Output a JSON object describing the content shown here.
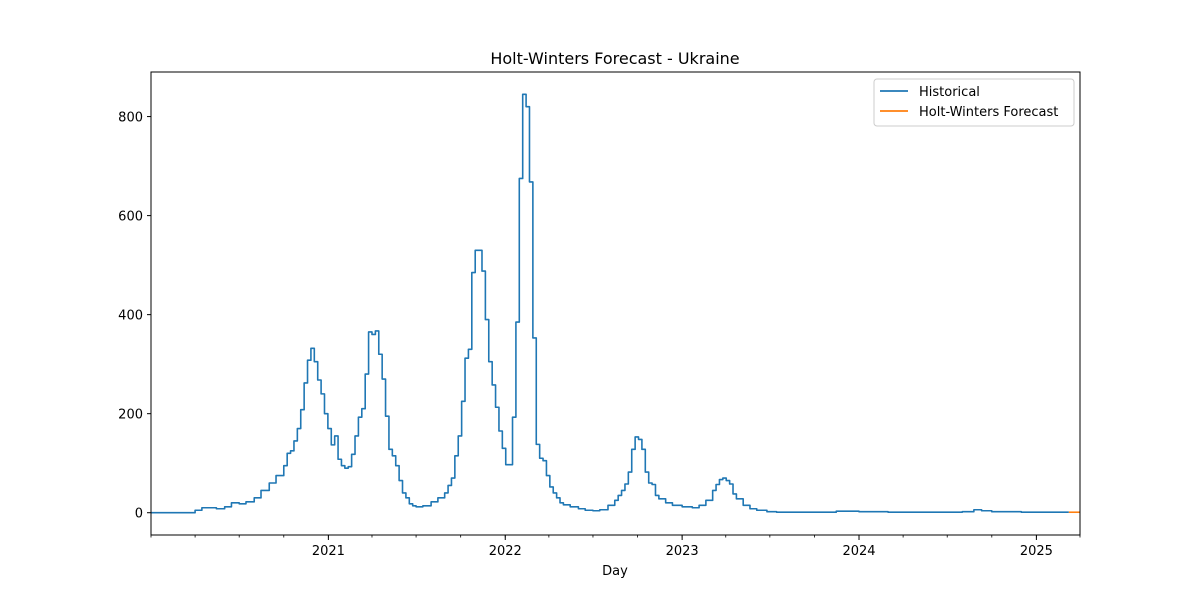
{
  "chart_data": {
    "type": "line",
    "title": "Holt-Winters Forecast - Ukraine",
    "xlabel": "Day",
    "ylabel": "",
    "xlim": [
      "2020-01-01",
      "2025-04-01"
    ],
    "ylim": [
      -45,
      890
    ],
    "x_ticks": [
      {
        "date": "2021-01-01",
        "label": "2021"
      },
      {
        "date": "2022-01-01",
        "label": "2022"
      },
      {
        "date": "2023-01-01",
        "label": "2023"
      },
      {
        "date": "2024-01-01",
        "label": "2024"
      },
      {
        "date": "2025-01-01",
        "label": "2025"
      }
    ],
    "y_ticks": [
      0,
      200,
      400,
      600,
      800
    ],
    "grid": false,
    "legend_position": "top-right",
    "series": [
      {
        "name": "Historical",
        "color": "#1f77b4",
        "step": true,
        "points": [
          [
            "2020-01-01",
            0
          ],
          [
            "2020-03-15",
            0
          ],
          [
            "2020-04-01",
            5
          ],
          [
            "2020-04-15",
            10
          ],
          [
            "2020-05-01",
            10
          ],
          [
            "2020-05-15",
            8
          ],
          [
            "2020-06-01",
            12
          ],
          [
            "2020-06-15",
            20
          ],
          [
            "2020-07-01",
            18
          ],
          [
            "2020-07-15",
            22
          ],
          [
            "2020-08-01",
            30
          ],
          [
            "2020-08-15",
            45
          ],
          [
            "2020-09-01",
            60
          ],
          [
            "2020-09-15",
            75
          ],
          [
            "2020-10-01",
            95
          ],
          [
            "2020-10-08",
            120
          ],
          [
            "2020-10-15",
            125
          ],
          [
            "2020-10-22",
            145
          ],
          [
            "2020-10-29",
            170
          ],
          [
            "2020-11-05",
            208
          ],
          [
            "2020-11-12",
            262
          ],
          [
            "2020-11-19",
            308
          ],
          [
            "2020-11-26",
            332
          ],
          [
            "2020-12-03",
            305
          ],
          [
            "2020-12-10",
            268
          ],
          [
            "2020-12-17",
            240
          ],
          [
            "2020-12-24",
            200
          ],
          [
            "2020-12-31",
            170
          ],
          [
            "2021-01-07",
            137
          ],
          [
            "2021-01-14",
            155
          ],
          [
            "2021-01-21",
            108
          ],
          [
            "2021-01-28",
            95
          ],
          [
            "2021-02-04",
            90
          ],
          [
            "2021-02-11",
            93
          ],
          [
            "2021-02-18",
            118
          ],
          [
            "2021-02-25",
            155
          ],
          [
            "2021-03-04",
            193
          ],
          [
            "2021-03-11",
            210
          ],
          [
            "2021-03-18",
            280
          ],
          [
            "2021-03-25",
            365
          ],
          [
            "2021-04-01",
            360
          ],
          [
            "2021-04-08",
            367
          ],
          [
            "2021-04-15",
            320
          ],
          [
            "2021-04-22",
            270
          ],
          [
            "2021-04-29",
            195
          ],
          [
            "2021-05-06",
            128
          ],
          [
            "2021-05-13",
            115
          ],
          [
            "2021-05-20",
            95
          ],
          [
            "2021-05-27",
            65
          ],
          [
            "2021-06-03",
            40
          ],
          [
            "2021-06-10",
            30
          ],
          [
            "2021-06-17",
            18
          ],
          [
            "2021-06-24",
            14
          ],
          [
            "2021-07-01",
            12
          ],
          [
            "2021-07-15",
            14
          ],
          [
            "2021-08-01",
            22
          ],
          [
            "2021-08-15",
            30
          ],
          [
            "2021-08-29",
            40
          ],
          [
            "2021-09-05",
            55
          ],
          [
            "2021-09-12",
            70
          ],
          [
            "2021-09-19",
            115
          ],
          [
            "2021-09-26",
            155
          ],
          [
            "2021-10-03",
            225
          ],
          [
            "2021-10-10",
            312
          ],
          [
            "2021-10-17",
            330
          ],
          [
            "2021-10-24",
            485
          ],
          [
            "2021-10-31",
            530
          ],
          [
            "2021-11-07",
            530
          ],
          [
            "2021-11-14",
            488
          ],
          [
            "2021-11-21",
            390
          ],
          [
            "2021-11-28",
            305
          ],
          [
            "2021-12-05",
            258
          ],
          [
            "2021-12-12",
            213
          ],
          [
            "2021-12-19",
            165
          ],
          [
            "2021-12-26",
            130
          ],
          [
            "2022-01-02",
            97
          ],
          [
            "2022-01-16",
            193
          ],
          [
            "2022-01-23",
            385
          ],
          [
            "2022-01-30",
            675
          ],
          [
            "2022-02-06",
            845
          ],
          [
            "2022-02-13",
            820
          ],
          [
            "2022-02-20",
            668
          ],
          [
            "2022-02-27",
            353
          ],
          [
            "2022-03-06",
            138
          ],
          [
            "2022-03-13",
            110
          ],
          [
            "2022-03-20",
            105
          ],
          [
            "2022-03-27",
            75
          ],
          [
            "2022-04-03",
            52
          ],
          [
            "2022-04-10",
            40
          ],
          [
            "2022-04-17",
            30
          ],
          [
            "2022-04-24",
            20
          ],
          [
            "2022-05-01",
            16
          ],
          [
            "2022-05-15",
            12
          ],
          [
            "2022-06-01",
            8
          ],
          [
            "2022-06-15",
            5
          ],
          [
            "2022-07-01",
            4
          ],
          [
            "2022-07-15",
            6
          ],
          [
            "2022-08-01",
            15
          ],
          [
            "2022-08-15",
            25
          ],
          [
            "2022-08-22",
            35
          ],
          [
            "2022-08-29",
            45
          ],
          [
            "2022-09-05",
            58
          ],
          [
            "2022-09-12",
            82
          ],
          [
            "2022-09-19",
            128
          ],
          [
            "2022-09-26",
            153
          ],
          [
            "2022-10-03",
            148
          ],
          [
            "2022-10-10",
            128
          ],
          [
            "2022-10-17",
            82
          ],
          [
            "2022-10-24",
            60
          ],
          [
            "2022-10-31",
            57
          ],
          [
            "2022-11-07",
            35
          ],
          [
            "2022-11-14",
            28
          ],
          [
            "2022-11-28",
            20
          ],
          [
            "2022-12-12",
            15
          ],
          [
            "2023-01-01",
            12
          ],
          [
            "2023-01-22",
            10
          ],
          [
            "2023-02-05",
            15
          ],
          [
            "2023-02-19",
            25
          ],
          [
            "2023-03-05",
            45
          ],
          [
            "2023-03-12",
            57
          ],
          [
            "2023-03-19",
            67
          ],
          [
            "2023-03-26",
            70
          ],
          [
            "2023-04-02",
            65
          ],
          [
            "2023-04-09",
            58
          ],
          [
            "2023-04-16",
            38
          ],
          [
            "2023-04-23",
            28
          ],
          [
            "2023-05-07",
            15
          ],
          [
            "2023-05-21",
            8
          ],
          [
            "2023-06-04",
            5
          ],
          [
            "2023-06-25",
            2
          ],
          [
            "2023-07-15",
            1
          ],
          [
            "2023-10-01",
            1
          ],
          [
            "2023-11-15",
            3
          ],
          [
            "2024-01-01",
            2
          ],
          [
            "2024-03-01",
            1
          ],
          [
            "2024-06-01",
            1
          ],
          [
            "2024-08-01",
            2
          ],
          [
            "2024-08-25",
            6
          ],
          [
            "2024-09-10",
            4
          ],
          [
            "2024-10-01",
            2
          ],
          [
            "2024-12-01",
            1
          ],
          [
            "2025-03-09",
            1
          ]
        ]
      },
      {
        "name": "Holt-Winters Forecast",
        "color": "#ff7f0e",
        "step": false,
        "points": [
          [
            "2025-03-09",
            1
          ],
          [
            "2025-04-01",
            1
          ]
        ]
      }
    ]
  }
}
